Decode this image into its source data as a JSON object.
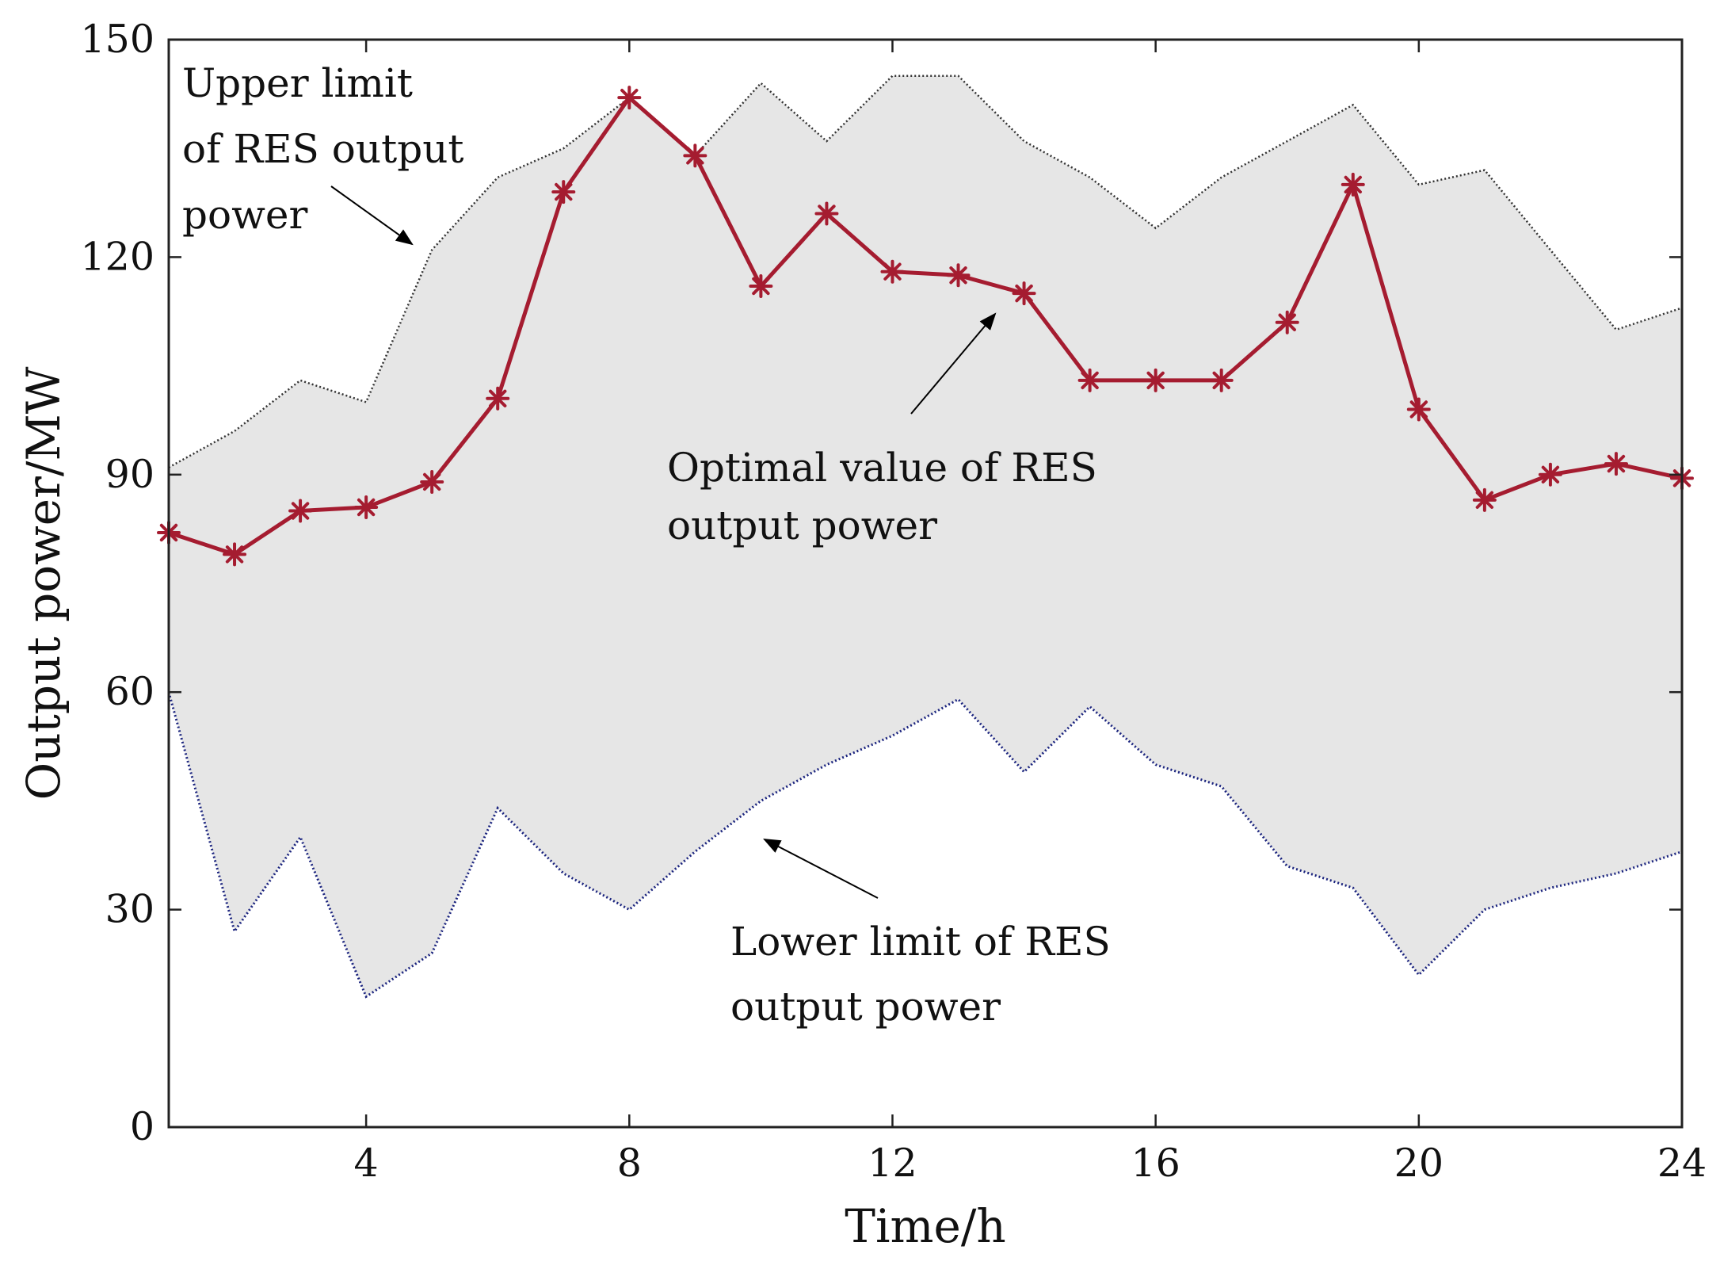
{
  "chart_data": {
    "type": "line",
    "title": "",
    "xlabel": "Time/h",
    "ylabel": "Output power/MW",
    "xlim": [
      1,
      24
    ],
    "ylim": [
      0,
      150
    ],
    "xticks": [
      4,
      8,
      12,
      16,
      20,
      24
    ],
    "yticks": [
      0,
      30,
      60,
      90,
      120,
      150
    ],
    "grid": false,
    "x": [
      1,
      2,
      3,
      4,
      5,
      6,
      7,
      8,
      9,
      10,
      11,
      12,
      13,
      14,
      15,
      16,
      17,
      18,
      19,
      20,
      21,
      22,
      23,
      24
    ],
    "series": [
      {
        "name": "Upper limit of RES output power",
        "style": "dotted",
        "color": "#333333",
        "values": [
          91,
          96,
          103,
          100,
          121,
          131,
          135,
          142,
          134,
          144,
          136,
          145,
          145,
          136,
          131,
          124,
          131,
          136,
          141,
          130,
          132,
          121,
          110,
          113
        ]
      },
      {
        "name": "Lower limit of RES output power",
        "style": "dotted",
        "color": "#1a237e",
        "values": [
          60,
          27,
          40,
          18,
          24,
          44,
          35,
          30,
          38,
          45,
          50,
          54,
          59,
          49,
          58,
          50,
          47,
          36,
          33,
          21,
          30,
          33,
          35,
          38
        ]
      },
      {
        "name": "Optimal value of RES output power",
        "style": "solid",
        "marker": "asterisk",
        "color": "#a51c30",
        "values": [
          82,
          79,
          85,
          85.5,
          89,
          100.5,
          129,
          142,
          134,
          116,
          126,
          118,
          117.5,
          115,
          103,
          103,
          103,
          111,
          130,
          99,
          86.5,
          90,
          91.5,
          89.5
        ]
      }
    ],
    "band": {
      "between": [
        "Lower limit of RES output power",
        "Upper limit of RES output power"
      ],
      "color": "#e6e6e6"
    },
    "annotations": [
      {
        "lines": [
          "Upper limit",
          "of RES output",
          "power"
        ],
        "arrow_to": {
          "x": 4.7,
          "y": 122
        }
      },
      {
        "lines": [
          "Optimal value of RES",
          "output power"
        ],
        "arrow_to": {
          "x": 13.8,
          "y": 111
        }
      },
      {
        "lines": [
          "Lower limit of RES",
          "output power"
        ],
        "arrow_to": {
          "x": 10.1,
          "y": 40
        }
      }
    ]
  }
}
